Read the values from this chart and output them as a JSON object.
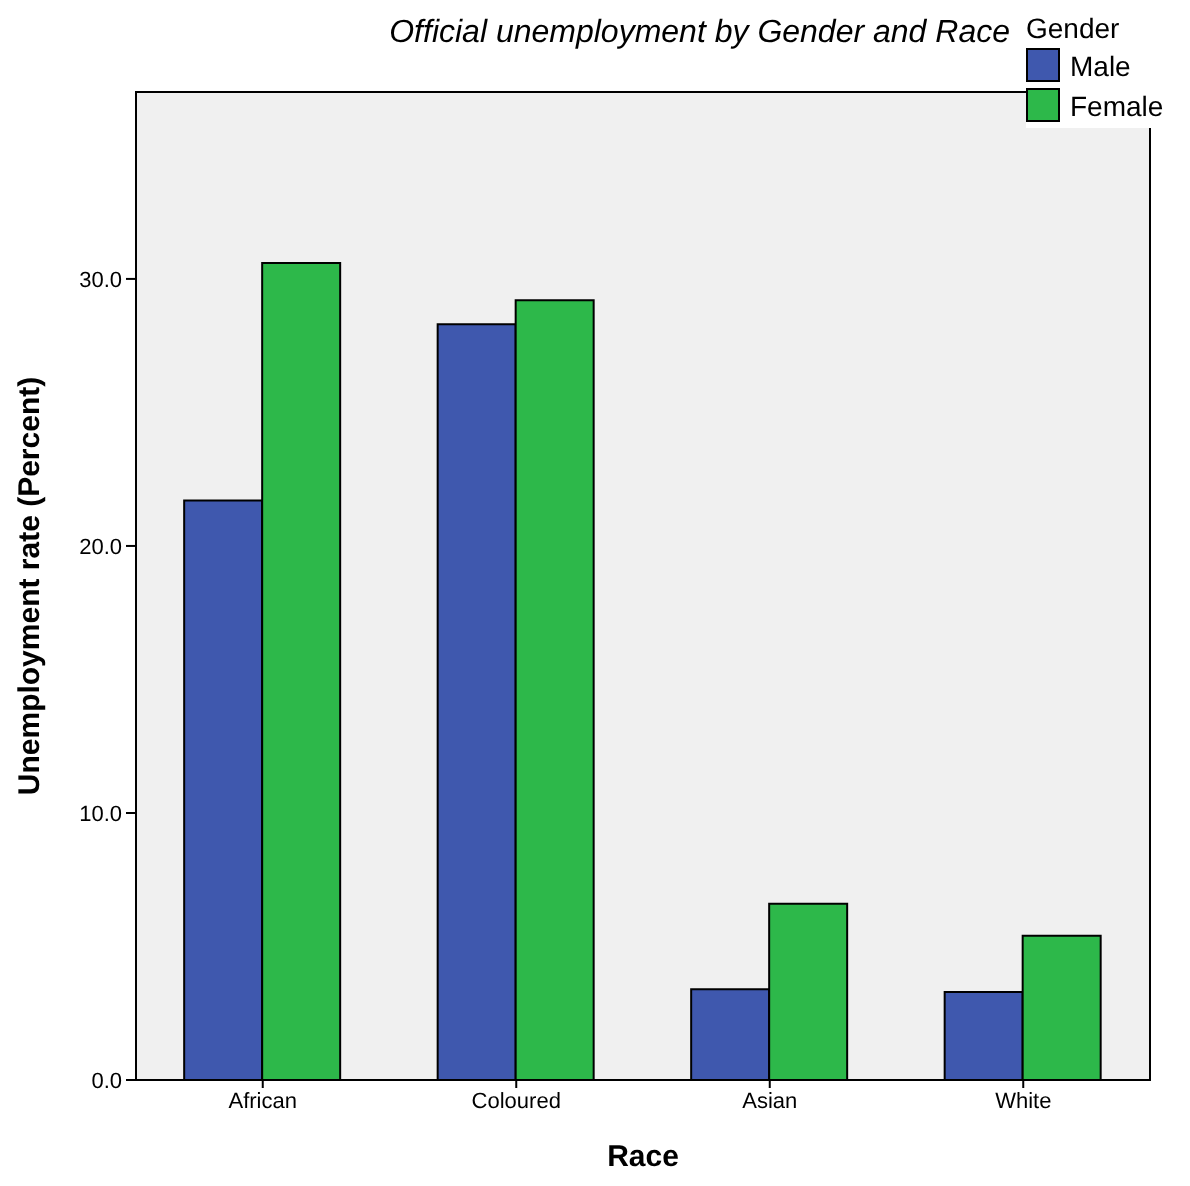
{
  "chart_data": {
    "type": "bar",
    "title": "Official unemployment by Gender and Race",
    "xlabel": "Race",
    "ylabel": "Unemployment rate (Percent)",
    "legend_title": "Gender",
    "categories": [
      "African",
      "Coloured",
      "Asian",
      "White"
    ],
    "series": [
      {
        "name": "Male",
        "color": "#3f58ae",
        "values": [
          21.7,
          28.3,
          3.4,
          3.3
        ]
      },
      {
        "name": "Female",
        "color": "#2db84a",
        "values": [
          30.6,
          29.2,
          6.6,
          5.4
        ]
      }
    ],
    "ylim": [
      0,
      37
    ],
    "yticks": [
      {
        "value": 0,
        "label": "0.0"
      },
      {
        "value": 10,
        "label": "10.0"
      },
      {
        "value": 20,
        "label": "20.0"
      },
      {
        "value": 30,
        "label": "30.0"
      }
    ],
    "legend": "top right"
  }
}
